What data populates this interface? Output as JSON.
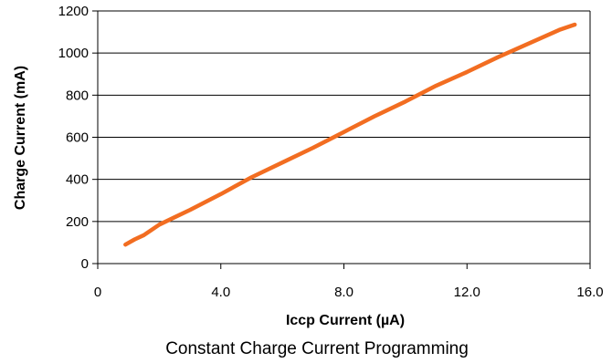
{
  "chart_data": {
    "type": "line",
    "title": "Constant Charge Current Programming",
    "xlabel": "Iccp Current (µA)",
    "ylabel": "Charge Current (mA)",
    "xlim": [
      0,
      16
    ],
    "ylim": [
      0,
      1200
    ],
    "x_ticks": [
      "0",
      "4.0",
      "8.0",
      "12.0",
      "16.0"
    ],
    "y_ticks": [
      "0",
      "200",
      "400",
      "600",
      "800",
      "1000",
      "1200"
    ],
    "grid": "horizontal",
    "series": [
      {
        "color": "#f26d21",
        "x": [
          0.9,
          1.2,
          1.5,
          2.0,
          2.5,
          3.0,
          4.0,
          5.0,
          6.0,
          7.0,
          8.0,
          9.0,
          10.0,
          11.0,
          12.0,
          13.0,
          14.0,
          15.0,
          15.5
        ],
        "y": [
          90,
          115,
          135,
          185,
          220,
          255,
          330,
          410,
          480,
          550,
          625,
          700,
          770,
          845,
          910,
          980,
          1045,
          1110,
          1135
        ]
      }
    ]
  }
}
